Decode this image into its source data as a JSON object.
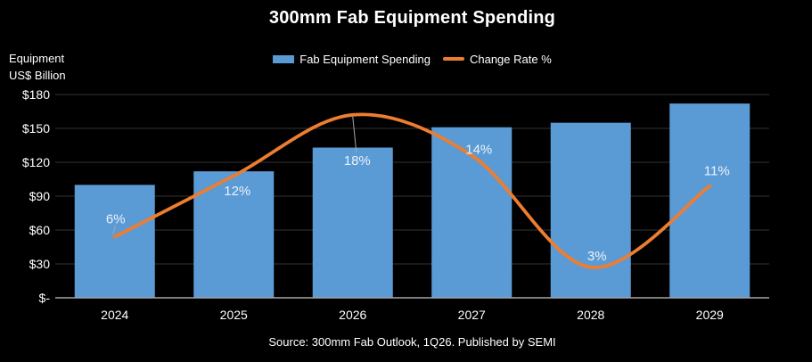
{
  "title": "300mm Fab Equipment Spending",
  "legend": {
    "bar_label": "Fab Equipment Spending",
    "line_label": "Change Rate %"
  },
  "axis_title": {
    "line1": "Equipment",
    "line2": "US$ Billion"
  },
  "source": "Source: 300mm Fab Outlook, 1Q26. Published by SEMI",
  "colors": {
    "background": "#000000",
    "bar": "#5B9BD5",
    "line": "#ED7D31",
    "gridline": "#333333",
    "axis_line": "#A6A6A6",
    "leader_line": "#A6A6A6",
    "text": "#FFFFFF",
    "data_label_text": "#EAF1FB"
  },
  "chart_data": {
    "type": "bar",
    "subtype": "combo bar + smooth line",
    "title": "300mm Fab Equipment Spending",
    "categories": [
      "2024",
      "2025",
      "2026",
      "2027",
      "2028",
      "2029"
    ],
    "series": [
      {
        "name": "Fab Equipment Spending",
        "type": "bar",
        "axis": "primary",
        "unit": "US$ Billion",
        "values": [
          100,
          112,
          133,
          151,
          155,
          172
        ]
      },
      {
        "name": "Change Rate %",
        "type": "line",
        "axis": "secondary",
        "unit": "%",
        "values": [
          6,
          12,
          18,
          14,
          3,
          11
        ],
        "labels": [
          "6%",
          "12%",
          "18%",
          "14%",
          "3%",
          "11%"
        ]
      }
    ],
    "y_axis": {
      "label": "Equipment US$ Billion",
      "ticks": [
        "$180",
        "$150",
        "$120",
        "$90",
        "$60",
        "$30",
        "$-"
      ],
      "tick_values": [
        180,
        150,
        120,
        90,
        60,
        30,
        0
      ],
      "range": [
        0,
        180
      ]
    },
    "secondary_axis": {
      "visible": false,
      "range": [
        0,
        20
      ]
    },
    "grid": true,
    "legend_position": "top"
  }
}
